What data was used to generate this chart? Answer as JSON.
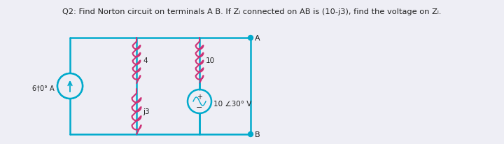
{
  "title_text": "Q2: Find Norton circuit on terminals A B. If Zⱺ connected on AB is (10-j3), find the voltage on Zⱺ.",
  "title_plain": "Q2: Find Norton circuit on terminals A B. If Zₗ connected on AB is (10-j3), find the voltage on Zₗ.",
  "bg_color": "#eeeef5",
  "circuit_color": "#00aacc",
  "component_color": "#cc3377",
  "text_color": "#333333",
  "current_source_label": "6†0° A",
  "resistor1_label": "4",
  "inductor1_label": "j3",
  "resistor2_label": "10",
  "voltage_source_label": "10 ∠30° V",
  "terminal_A": "A",
  "terminal_B": "B"
}
